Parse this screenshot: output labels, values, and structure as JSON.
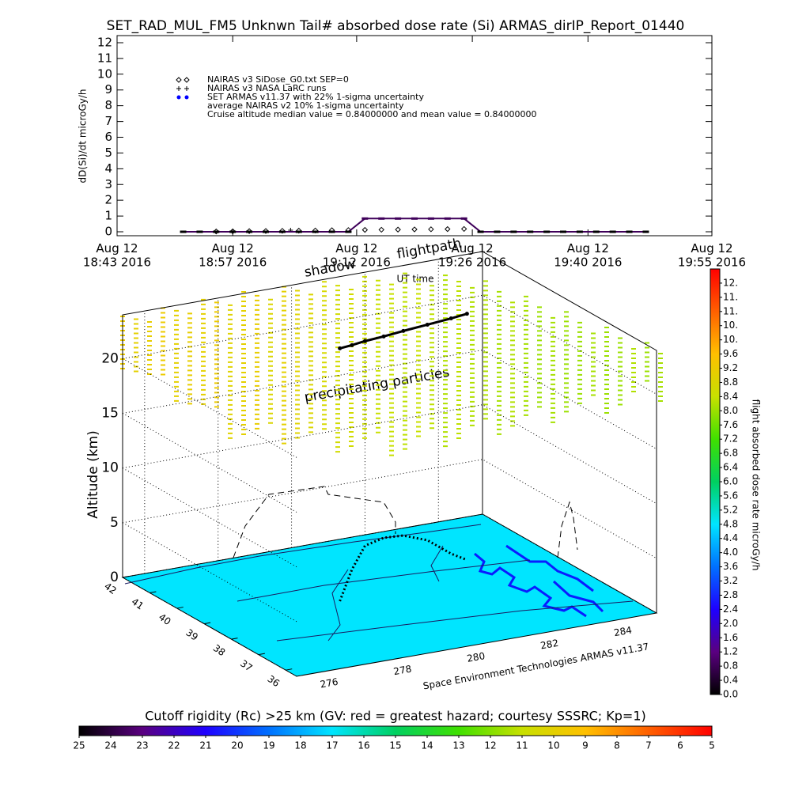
{
  "chart_data": [
    {
      "type": "line",
      "title": "SET_RAD_MUL_FM5 Unknwn Tail#  absorbed dose rate (Si) ARMAS_dirIP_Report_01440",
      "ylabel": "dD(Si)/dt microGy/h",
      "xlabel": "UT time",
      "xlim": [
        "18:43",
        "19:55"
      ],
      "xticks": [
        {
          "value": "18:43",
          "label": "Aug 12\n18:43 2016"
        },
        {
          "value": "18:57",
          "label": "Aug 12\n18:57 2016"
        },
        {
          "value": "19:12",
          "label": "Aug 12\n19:12 2016"
        },
        {
          "value": "19:26",
          "label": "Aug 12\n19:26 2016"
        },
        {
          "value": "19:40",
          "label": "Aug 12\n19:40 2016"
        },
        {
          "value": "19:55",
          "label": "Aug 12\n19:55 2016"
        }
      ],
      "ylim": [
        -0.25,
        12.45
      ],
      "yticks": [
        0,
        1,
        2,
        3,
        4,
        5,
        6,
        7,
        8,
        9,
        10,
        11,
        12
      ],
      "series": [
        {
          "name": "NAIRAS v3 SiDose_G0.txt SEP=0",
          "marker": "diamond",
          "color": "#000000",
          "x": [
            "18:55",
            "18:57",
            "18:59",
            "19:01",
            "19:03",
            "19:05",
            "19:07",
            "19:09",
            "19:11",
            "19:13",
            "19:15",
            "19:17",
            "19:19",
            "19:21",
            "19:23",
            "19:25"
          ],
          "values": [
            0.02,
            0.03,
            0.04,
            0.05,
            0.06,
            0.07,
            0.08,
            0.1,
            0.11,
            0.12,
            0.13,
            0.14,
            0.15,
            0.16,
            0.17,
            0.18
          ]
        },
        {
          "name": "NAIRAS v3 NASA LaRC runs",
          "marker": "plus",
          "color": "#000000",
          "x": [
            "19:04"
          ],
          "values": [
            0.1
          ]
        },
        {
          "name": "SET ARMAS v11.37 with 22% 1-sigma uncertainty",
          "marker": "dash",
          "color": "#0000ff",
          "x": [
            "18:51",
            "18:53",
            "18:55",
            "18:57",
            "18:59",
            "19:01",
            "19:03",
            "19:05",
            "19:07",
            "19:09",
            "19:11",
            "19:13",
            "19:15",
            "19:17",
            "19:19",
            "19:21",
            "19:23",
            "19:25",
            "19:27",
            "19:29",
            "19:31",
            "19:33",
            "19:35",
            "19:37",
            "19:39",
            "19:41",
            "19:43",
            "19:45",
            "19:47"
          ],
          "values": [
            0,
            0,
            0,
            0,
            0,
            0,
            0,
            0,
            0,
            0,
            0,
            0.84,
            0.84,
            0.84,
            0.84,
            0.84,
            0.84,
            0.84,
            0,
            0,
            0,
            0,
            0,
            0,
            0,
            0,
            0,
            0,
            0
          ]
        }
      ],
      "annotations": [
        "average NAIRAS v2 10% 1-sigma uncertainty",
        "Cruise altitude median value = 0.84000000 and mean value = 0.84000000"
      ]
    },
    {
      "type": "3d-path",
      "ylabel": "Altitude (km)",
      "credit": "Space Environment Technologies ARMAS v11.37",
      "annotations": [
        "shadow",
        "flightpath",
        "precipitating particles"
      ],
      "lonlim": [
        275.4,
        285.2
      ],
      "lonticks": [
        276,
        278,
        280,
        282,
        284
      ],
      "latlim": [
        35.6,
        42
      ],
      "latticks": [
        36,
        37,
        38,
        39,
        40,
        41,
        42
      ],
      "altlim": [
        0,
        24
      ],
      "altticks": [
        0,
        5,
        10,
        15,
        20
      ],
      "base_color": "#00e5ff",
      "path": {
        "lon": [
          279.05,
          280.46,
          281.6,
          282.28,
          282.77,
          283.1,
          283.1,
          283.2
        ],
        "lat": [
          38.94,
          40.4,
          41.46,
          41.69,
          41.63,
          41.19,
          40.32,
          39.87
        ],
        "alt": [
          23.1,
          20.5,
          18.7,
          18.4,
          18.7,
          19.7,
          21.5,
          22.5
        ]
      },
      "particles": [
        9.2,
        9.0,
        9.1,
        9.2,
        9.0,
        9.1,
        9.0,
        9.2,
        8.9,
        9.0,
        9.1,
        8.8,
        9.0,
        8.9,
        8.8,
        8.7,
        8.6,
        8.6,
        8.5,
        8.4,
        8.4,
        8.3,
        8.4,
        8.3,
        8.2,
        8.3,
        8.2,
        8.2,
        8.1,
        8.2,
        8.1,
        8.0,
        8.1,
        8.0,
        8.0,
        8.1,
        8.0,
        8.0,
        8.2,
        8.0,
        8.1
      ]
    },
    {
      "type": "colorbar",
      "orientation": "vertical",
      "label": "flight absorbed dose rate microGy/h",
      "clim": [
        0,
        12
      ],
      "ticks": [
        {
          "value": 0,
          "label": "0.0"
        },
        0.4,
        0.8,
        1.2,
        1.6,
        {
          "value": 2,
          "label": "2.0"
        },
        2.4,
        2.8,
        3.2,
        3.6,
        {
          "value": 4,
          "label": "4.0"
        },
        4.4,
        4.8,
        5.2,
        5.6,
        {
          "value": 6,
          "label": "6.0"
        },
        6.4,
        6.8,
        7.2,
        7.6,
        {
          "value": 8,
          "label": "8.0"
        },
        8.4,
        8.8,
        9.2,
        9.6,
        {
          "value": 10,
          "label": "10."
        },
        {
          "value": 10.4,
          "label": "10."
        },
        {
          "value": 10.8,
          "label": "11."
        },
        {
          "value": 11.2,
          "label": "11."
        },
        {
          "value": 11.6,
          "label": "12."
        }
      ],
      "colormap": [
        "#000000",
        "#5a0080",
        "#1e00ff",
        "#0070ff",
        "#00e5ff",
        "#00d060",
        "#40e000",
        "#c8e000",
        "#ffc000",
        "#ff6000",
        "#ff0000"
      ]
    },
    {
      "type": "colorbar",
      "orientation": "horizontal",
      "title": "Cutoff rigidity (Rc) >25 km (GV: red = greatest hazard; courtesy SSSRC; Kp=1)",
      "clim": [
        25,
        5
      ],
      "ticks": [
        25,
        24,
        23,
        22,
        21,
        20,
        19,
        18,
        17,
        16,
        15,
        14,
        13,
        12,
        11,
        10,
        9,
        8,
        7,
        6,
        5
      ],
      "colormap": [
        "#000000",
        "#5a0080",
        "#1e00ff",
        "#0070ff",
        "#00e5ff",
        "#00d060",
        "#40e000",
        "#c8e000",
        "#ffc000",
        "#ff6000",
        "#ff0000"
      ]
    }
  ]
}
